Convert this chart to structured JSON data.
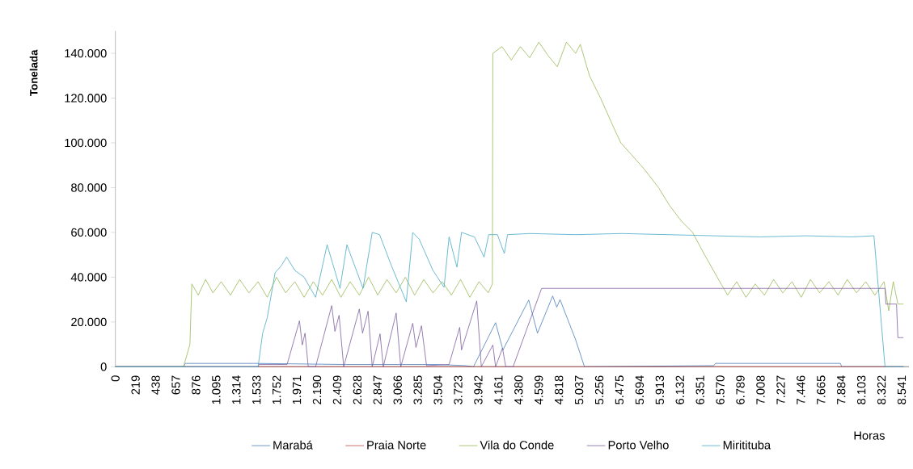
{
  "chart_data": {
    "type": "line",
    "xlabel": "Horas",
    "ylabel": "Tonelada",
    "xlim": [
      0,
      8620
    ],
    "ylim": [
      0,
      150000
    ],
    "xticks": [
      0,
      219,
      438,
      657,
      876,
      {
        "value": 1095,
        "label": "1.095"
      },
      {
        "value": 1314,
        "label": "1.314"
      },
      {
        "value": 1533,
        "label": "1.533"
      },
      {
        "value": 1752,
        "label": "1.752"
      },
      {
        "value": 1971,
        "label": "1.971"
      },
      {
        "value": 2190,
        "label": "2.190"
      },
      {
        "value": 2409,
        "label": "2.409"
      },
      {
        "value": 2628,
        "label": "2.628"
      },
      {
        "value": 2847,
        "label": "2.847"
      },
      {
        "value": 3066,
        "label": "3.066"
      },
      {
        "value": 3285,
        "label": "3.285"
      },
      {
        "value": 3504,
        "label": "3.504"
      },
      {
        "value": 3723,
        "label": "3.723"
      },
      {
        "value": 3942,
        "label": "3.942"
      },
      {
        "value": 4161,
        "label": "4.161"
      },
      {
        "value": 4380,
        "label": "4.380"
      },
      {
        "value": 4599,
        "label": "4.599"
      },
      {
        "value": 4818,
        "label": "4.818"
      },
      {
        "value": 5037,
        "label": "5.037"
      },
      {
        "value": 5256,
        "label": "5.256"
      },
      {
        "value": 5475,
        "label": "5.475"
      },
      {
        "value": 5694,
        "label": "5.694"
      },
      {
        "value": 5913,
        "label": "5.913"
      },
      {
        "value": 6132,
        "label": "6.132"
      },
      {
        "value": 6351,
        "label": "6.351"
      },
      {
        "value": 6570,
        "label": "6.570"
      },
      {
        "value": 6789,
        "label": "6.789"
      },
      {
        "value": 7008,
        "label": "7.008"
      },
      {
        "value": 7227,
        "label": "7.227"
      },
      {
        "value": 7446,
        "label": "7.446"
      },
      {
        "value": 7665,
        "label": "7.665"
      },
      {
        "value": 7884,
        "label": "7.884"
      },
      {
        "value": 8103,
        "label": "8.103"
      },
      {
        "value": 8322,
        "label": "8.322"
      },
      {
        "value": 8541,
        "label": "8.541"
      }
    ],
    "yticks": [
      0,
      {
        "value": 20000,
        "label": "20.000"
      },
      {
        "value": 40000,
        "label": "40.000"
      },
      {
        "value": 60000,
        "label": "60.000"
      },
      {
        "value": 80000,
        "label": "80.000"
      },
      {
        "value": 100000,
        "label": "100.000"
      },
      {
        "value": 120000,
        "label": "120.000"
      },
      {
        "value": 140000,
        "label": "140.000"
      }
    ],
    "grid": false,
    "legend": "bottom",
    "marker": "none",
    "line_style": "solid",
    "series": [
      {
        "name": "Marabá",
        "color": "#4a7ebb",
        "x": [
          0,
          740,
          760,
          1500,
          2500,
          3500,
          3800,
          3890,
          4130,
          4210,
          4490,
          4585,
          4750,
          4795,
          4830,
          5000,
          5095,
          6500,
          6520,
          7875,
          7890,
          8560
        ],
        "values": [
          0,
          0,
          1500,
          1500,
          1000,
          1000,
          500,
          0,
          19700,
          7500,
          29800,
          15000,
          31600,
          26600,
          30000,
          12000,
          0,
          500,
          1500,
          1500,
          0,
          0
        ]
      },
      {
        "name": "Praia Norte",
        "color": "#be4b48",
        "x": [
          0,
          8560
        ],
        "values": [
          0,
          0
        ]
      },
      {
        "name": "Vila do Conde",
        "color": "#98b954",
        "x": [
          0,
          740,
          810,
          830,
          900,
          980,
          1060,
          1150,
          1250,
          1350,
          1450,
          1550,
          1650,
          1750,
          1850,
          1950,
          2050,
          2150,
          2250,
          2350,
          2450,
          2550,
          2650,
          2750,
          2850,
          2950,
          3050,
          3150,
          3250,
          3350,
          3450,
          3550,
          3650,
          3750,
          3850,
          3950,
          4050,
          4095,
          4100,
          4200,
          4300,
          4400,
          4500,
          4600,
          4700,
          4800,
          4900,
          5000,
          5050,
          5150,
          5270,
          5400,
          5490,
          5600,
          5750,
          5900,
          6020,
          6150,
          6270,
          6400,
          6565,
          6650,
          6750,
          6850,
          6950,
          7050,
          7150,
          7250,
          7350,
          7450,
          7550,
          7650,
          7750,
          7850,
          7950,
          8050,
          8150,
          8250,
          8350,
          8400,
          8450,
          8500,
          8560
        ],
        "values": [
          0,
          0,
          10000,
          37000,
          32000,
          39000,
          33000,
          38000,
          32000,
          39000,
          33000,
          38000,
          31000,
          40000,
          33000,
          38000,
          31000,
          38000,
          32000,
          39000,
          31000,
          38000,
          32000,
          40000,
          32000,
          39000,
          33000,
          40000,
          32000,
          39000,
          33000,
          38000,
          32000,
          39000,
          31000,
          38000,
          33000,
          37000,
          140000,
          143000,
          137000,
          143000,
          138000,
          145000,
          139000,
          134000,
          145000,
          140000,
          144000,
          130000,
          120000,
          108000,
          100000,
          95000,
          88000,
          80000,
          72000,
          65000,
          60000,
          50000,
          38000,
          32000,
          38000,
          31000,
          37000,
          32000,
          39000,
          33000,
          38000,
          31000,
          39000,
          33000,
          38000,
          32000,
          39000,
          33000,
          38000,
          32000,
          38000,
          25000,
          38000,
          28000,
          28000
        ]
      },
      {
        "name": "Porto Velho",
        "color": "#7d60a0",
        "x": [
          0,
          1550,
          1560,
          1865,
          2000,
          2030,
          2060,
          2095,
          2175,
          2350,
          2385,
          2430,
          2480,
          2650,
          2685,
          2745,
          2790,
          2875,
          2910,
          3050,
          3100,
          3230,
          3265,
          3325,
          3380,
          3625,
          3740,
          3760,
          3925,
          3975,
          4100,
          4130,
          4205,
          4240,
          4320,
          4630,
          8360,
          8370,
          8485,
          8500,
          8560
        ],
        "values": [
          0,
          0,
          1000,
          1000,
          20500,
          9700,
          15000,
          0,
          0,
          27300,
          15800,
          23000,
          0,
          25800,
          15000,
          24800,
          0,
          14700,
          0,
          24000,
          0,
          19400,
          8600,
          18300,
          500,
          1000,
          17600,
          7500,
          29400,
          0,
          9700,
          0,
          8300,
          0,
          0,
          35000,
          35000,
          28000,
          28000,
          13000,
          13000
        ]
      },
      {
        "name": "Miritituba",
        "color": "#46aac5",
        "x": [
          0,
          1550,
          1600,
          1650,
          1735,
          1800,
          1860,
          1950,
          2050,
          2175,
          2300,
          2440,
          2515,
          2690,
          2790,
          2870,
          3000,
          3160,
          3230,
          3300,
          3450,
          3570,
          3625,
          3710,
          3760,
          3900,
          4005,
          4055,
          4150,
          4225,
          4260,
          4500,
          5000,
          5500,
          6000,
          6500,
          7000,
          7500,
          8000,
          8240,
          8360,
          8560
        ],
        "values": [
          0,
          0,
          15000,
          22000,
          42000,
          45000,
          49000,
          43000,
          40000,
          31000,
          54500,
          35000,
          54500,
          35000,
          60000,
          59000,
          45000,
          29000,
          60000,
          57000,
          43000,
          35500,
          58000,
          44500,
          60000,
          58000,
          49000,
          59000,
          59000,
          50600,
          59000,
          59500,
          59000,
          59500,
          59000,
          58500,
          58000,
          58500,
          58000,
          58500,
          0,
          0
        ]
      }
    ]
  }
}
